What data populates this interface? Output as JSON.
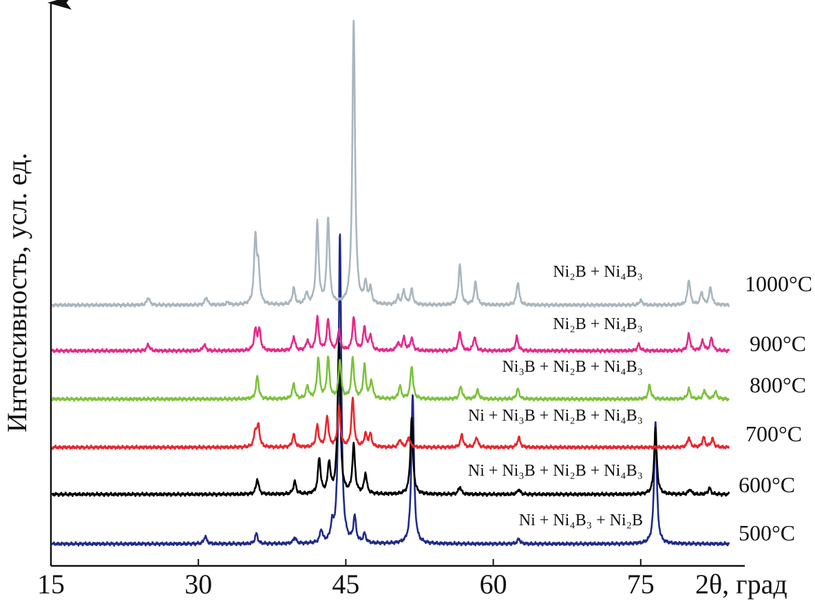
{
  "chart_data": {
    "type": "line",
    "title": "",
    "xlabel": "2θ, град",
    "ylabel": "Интенсивность, усл. ед.",
    "xlim": [
      15,
      84
    ],
    "x_ticks": [
      "15",
      "30",
      "45",
      "60",
      "75"
    ],
    "x_tick_values": [
      15,
      30,
      45,
      60,
      75
    ],
    "grid": false,
    "series": [
      {
        "name": "500°C",
        "phases": "Ni + Ni₄B₃ + Ni₂B",
        "color": "#1f2a8a",
        "baseline": 0.0,
        "peaks": [
          [
            30.7,
            0.3
          ],
          [
            35.9,
            0.4
          ],
          [
            39.8,
            0.25
          ],
          [
            42.5,
            0.5
          ],
          [
            43.6,
            0.6
          ],
          [
            44.4,
            12.2
          ],
          [
            45.9,
            1.0
          ],
          [
            46.9,
            0.35
          ],
          [
            51.8,
            5.9
          ],
          [
            62.6,
            0.2
          ],
          [
            76.5,
            4.8
          ]
        ]
      },
      {
        "name": "600°C",
        "phases": "Ni + Ni₃B + Ni₂B + Ni₄B₃",
        "color": "#000000",
        "baseline": 1.95,
        "peaks": [
          [
            36.0,
            0.6
          ],
          [
            39.8,
            0.5
          ],
          [
            42.3,
            1.4
          ],
          [
            43.3,
            1.2
          ],
          [
            44.3,
            6.0
          ],
          [
            45.8,
            1.9
          ],
          [
            47.0,
            0.8
          ],
          [
            51.7,
            3.0
          ],
          [
            56.6,
            0.3
          ],
          [
            62.6,
            0.2
          ],
          [
            76.5,
            2.6
          ],
          [
            80.0,
            0.2
          ],
          [
            82.0,
            0.25
          ]
        ]
      },
      {
        "name": "700°C",
        "phases": "Ni + Ni₃B + Ni₂B + Ni₄B₃",
        "color": "#e8262c",
        "baseline": 3.8,
        "peaks": [
          [
            35.8,
            0.6
          ],
          [
            36.1,
            0.8
          ],
          [
            39.7,
            0.5
          ],
          [
            42.1,
            0.85
          ],
          [
            43.1,
            1.2
          ],
          [
            44.3,
            1.6
          ],
          [
            45.7,
            1.9
          ],
          [
            47.0,
            0.5
          ],
          [
            47.5,
            0.5
          ],
          [
            50.5,
            0.3
          ],
          [
            51.4,
            0.4
          ],
          [
            56.8,
            0.5
          ],
          [
            58.3,
            0.4
          ],
          [
            62.6,
            0.4
          ],
          [
            79.9,
            0.4
          ],
          [
            81.4,
            0.4
          ],
          [
            82.3,
            0.35
          ]
        ]
      },
      {
        "name": "800°C",
        "phases": "Ni₃B + Ni₂B + Ni₄B₃",
        "color": "#7cc23c",
        "baseline": 5.7,
        "peaks": [
          [
            36.0,
            0.9
          ],
          [
            39.7,
            0.6
          ],
          [
            41.1,
            0.5
          ],
          [
            42.2,
            1.6
          ],
          [
            43.2,
            1.6
          ],
          [
            44.4,
            1.5
          ],
          [
            45.7,
            1.6
          ],
          [
            46.9,
            1.3
          ],
          [
            47.6,
            0.7
          ],
          [
            50.5,
            0.5
          ],
          [
            51.7,
            1.3
          ],
          [
            56.7,
            0.5
          ],
          [
            58.4,
            0.35
          ],
          [
            62.5,
            0.4
          ],
          [
            75.9,
            0.55
          ],
          [
            79.9,
            0.4
          ],
          [
            81.5,
            0.35
          ],
          [
            82.6,
            0.3
          ]
        ]
      },
      {
        "name": "900°C",
        "phases": "Ni₂B + Ni₄B₃",
        "color": "#e6288a",
        "baseline": 7.6,
        "peaks": [
          [
            24.9,
            0.25
          ],
          [
            30.6,
            0.25
          ],
          [
            35.8,
            0.8
          ],
          [
            36.2,
            0.8
          ],
          [
            39.7,
            0.55
          ],
          [
            41.1,
            0.4
          ],
          [
            42.1,
            1.3
          ],
          [
            43.2,
            1.2
          ],
          [
            44.3,
            0.8
          ],
          [
            45.8,
            1.3
          ],
          [
            46.9,
            0.9
          ],
          [
            47.5,
            0.6
          ],
          [
            50.3,
            0.3
          ],
          [
            50.9,
            0.5
          ],
          [
            51.7,
            0.5
          ],
          [
            56.6,
            0.75
          ],
          [
            58.1,
            0.55
          ],
          [
            62.4,
            0.55
          ],
          [
            74.8,
            0.25
          ],
          [
            79.9,
            0.65
          ],
          [
            81.3,
            0.4
          ],
          [
            82.2,
            0.5
          ]
        ]
      },
      {
        "name": "1000°C",
        "phases": "Ni₂B + Ni₄B₃",
        "color": "#a9b6bd",
        "baseline": 9.4,
        "peaks": [
          [
            24.9,
            0.3
          ],
          [
            30.8,
            0.3
          ],
          [
            33.0,
            0.1
          ],
          [
            35.8,
            2.6
          ],
          [
            36.1,
            1.3
          ],
          [
            39.7,
            0.65
          ],
          [
            41.0,
            0.45
          ],
          [
            42.1,
            3.2
          ],
          [
            43.2,
            3.4
          ],
          [
            45.8,
            11.2
          ],
          [
            47.0,
            0.8
          ],
          [
            47.5,
            0.6
          ],
          [
            50.3,
            0.3
          ],
          [
            50.9,
            0.55
          ],
          [
            51.7,
            0.6
          ],
          [
            56.6,
            1.6
          ],
          [
            58.2,
            0.9
          ],
          [
            62.5,
            0.9
          ],
          [
            75.0,
            0.2
          ],
          [
            79.9,
            1.0
          ],
          [
            81.2,
            0.5
          ],
          [
            82.1,
            0.7
          ]
        ]
      }
    ]
  }
}
